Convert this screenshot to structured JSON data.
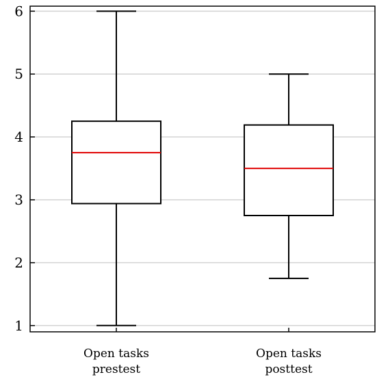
{
  "chart_data": {
    "type": "box",
    "title": "",
    "xlabel": "",
    "ylabel": "",
    "ylim": [
      0.9,
      6.08
    ],
    "y_ticks": [
      1,
      2,
      3,
      4,
      5,
      6
    ],
    "grid": "horizontal",
    "categories": [
      [
        "Open tasks",
        "prestest"
      ],
      [
        "Open tasks",
        "posttest"
      ]
    ],
    "boxes": [
      {
        "whisker_low": 1,
        "q1": 2.94,
        "median": 3.75,
        "q3": 4.25,
        "whisker_high": 6
      },
      {
        "whisker_low": 1.75,
        "q1": 2.75,
        "median": 3.5,
        "q3": 4.19,
        "whisker_high": 5
      }
    ],
    "colors": {
      "box": "#000000",
      "median": "#e00000",
      "grid": "#d3d3d3",
      "frame": "#000000"
    }
  }
}
